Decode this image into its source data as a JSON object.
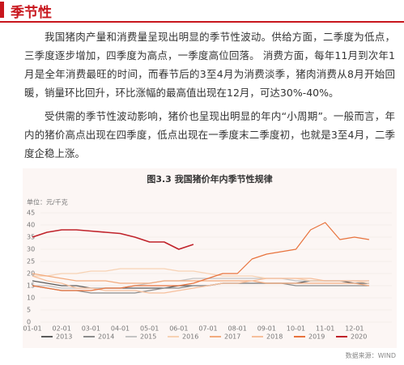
{
  "header": {
    "title": "季节性"
  },
  "paragraphs": [
    "我国猪肉产量和消费量呈现出明显的季节性波动。供给方面，二季度为低点，三季度逐步增加，四季度为高点，一季度高位回落。  消费方面，每年11月到次年1月是全年消费最旺的时间，而春节后的3至4月为消费淡季，猪肉消费从8月开始回暖，销量环比回升，环比涨幅的最高值出现在12月，可达30%-40%。",
    "受供需的季节性波动影响，猪价也呈现出明显的年内“小周期”。一般而言，年内的猪价高点出现在四季度，低点出现在一季度末二季度初，也就是3至4月，二季度企稳上涨。"
  ],
  "chart_data": {
    "type": "line",
    "title": "图3.3 我国猪价年内季节性规律",
    "y_label": "单位：元/千克",
    "categories": [
      "01-01",
      null,
      "02-01",
      null,
      "03-01",
      null,
      "04-01",
      null,
      "05-01",
      null,
      "06-01",
      null,
      "07-01",
      null,
      "08-01",
      null,
      "09-01",
      null,
      "10-01",
      null,
      "11-01",
      null,
      "12-01",
      null
    ],
    "ylim": [
      0,
      45
    ],
    "yticks": [
      0,
      5,
      10,
      15,
      20,
      25,
      30,
      35,
      40,
      45
    ],
    "grid": true,
    "series": [
      {
        "name": "2013",
        "color": "#5a5a5a",
        "values": [
          17,
          16,
          15,
          15,
          14,
          14,
          14,
          14,
          14,
          14,
          15,
          15,
          15,
          16,
          16,
          16,
          16,
          16,
          16,
          17,
          17,
          17,
          16,
          16
        ]
      },
      {
        "name": "2014",
        "color": "#8c8c8c",
        "values": [
          15,
          14,
          13,
          13,
          12,
          12,
          12,
          12,
          13,
          14,
          14,
          15,
          15,
          16,
          16,
          16,
          16,
          16,
          15,
          15,
          15,
          15,
          15,
          15
        ]
      },
      {
        "name": "2015",
        "color": "#c4c4c4",
        "values": [
          15,
          15,
          14,
          14,
          14,
          14,
          14,
          15,
          16,
          17,
          17,
          18,
          18,
          18,
          18,
          18,
          18,
          18,
          17,
          17,
          17,
          17,
          17,
          17
        ]
      },
      {
        "name": "2016",
        "color": "#f7d2b4",
        "values": [
          19,
          19,
          20,
          20,
          21,
          21,
          22,
          22,
          22,
          22,
          21,
          21,
          20,
          19,
          19,
          19,
          18,
          18,
          18,
          17,
          17,
          17,
          17,
          16
        ]
      },
      {
        "name": "2017",
        "color": "#f2ab7e",
        "values": [
          20,
          19,
          18,
          17,
          17,
          17,
          16,
          16,
          16,
          17,
          17,
          17,
          17,
          17,
          17,
          17,
          16,
          16,
          16,
          16,
          16,
          16,
          16,
          15
        ]
      },
      {
        "name": "2018",
        "color": "#f6bf9c",
        "values": [
          19,
          17,
          16,
          14,
          14,
          13,
          13,
          13,
          12,
          12,
          13,
          14,
          15,
          16,
          16,
          17,
          18,
          18,
          18,
          18,
          17,
          17,
          17,
          17
        ]
      },
      {
        "name": "2019",
        "color": "#e8733d",
        "values": [
          15,
          14,
          13,
          13,
          13,
          14,
          14,
          15,
          15,
          15,
          15,
          16,
          18,
          20,
          20,
          26,
          28,
          29,
          30,
          38,
          41,
          34,
          35,
          34
        ]
      },
      {
        "name": "2020",
        "color": "#c0222a",
        "values": [
          35,
          37,
          38,
          38,
          37.5,
          37,
          36.5,
          35,
          33,
          33,
          30,
          32,
          null,
          null,
          null,
          null,
          null,
          null,
          null,
          null,
          null,
          null,
          null,
          null
        ]
      }
    ]
  },
  "source": "数据来源：WIND"
}
